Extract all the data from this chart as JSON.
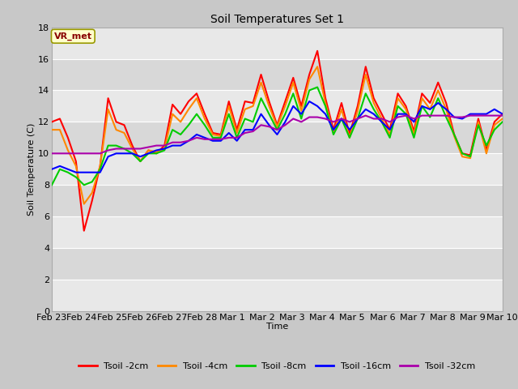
{
  "title": "Soil Temperatures Set 1",
  "xlabel": "Time",
  "ylabel": "Soil Temperature (C)",
  "ylim": [
    0,
    18
  ],
  "yticks": [
    0,
    2,
    4,
    6,
    8,
    10,
    12,
    14,
    16,
    18
  ],
  "annotation_text": "VR_met",
  "annotation_bbox_facecolor": "#ffffcc",
  "annotation_text_color": "#880000",
  "annotation_edge_color": "#999900",
  "fig_facecolor": "#c8c8c8",
  "plot_bg_color": "#e8e8e8",
  "band_colors": [
    "#e8e8e8",
    "#d8d8d8"
  ],
  "grid_color": "#ffffff",
  "series_colors": {
    "Tsoil -2cm": "#ff0000",
    "Tsoil -4cm": "#ff8800",
    "Tsoil -8cm": "#00cc00",
    "Tsoil -16cm": "#0000ff",
    "Tsoil -32cm": "#aa00aa"
  },
  "xtick_labels": [
    "Feb 23",
    "Feb 24",
    "Feb 25",
    "Feb 26",
    "Feb 27",
    "Feb 28",
    "Mar 1",
    "Mar 2",
    "Mar 3",
    "Mar 4",
    "Mar 5",
    "Mar 6",
    "Mar 7",
    "Mar 8",
    "Mar 9",
    "Mar 10"
  ],
  "t2cm": [
    12.0,
    12.2,
    11.0,
    9.5,
    5.1,
    7.0,
    9.2,
    13.5,
    12.0,
    11.8,
    10.5,
    9.5,
    10.2,
    10.0,
    10.5,
    13.1,
    12.5,
    13.3,
    13.8,
    12.5,
    11.3,
    11.2,
    13.3,
    11.5,
    13.3,
    13.2,
    15.0,
    13.3,
    11.8,
    13.3,
    14.8,
    13.0,
    15.0,
    16.5,
    13.5,
    11.5,
    13.2,
    11.2,
    13.0,
    15.5,
    13.5,
    12.5,
    11.5,
    13.8,
    13.0,
    11.4,
    13.8,
    13.2,
    14.5,
    13.2,
    11.2,
    10.0,
    9.9,
    12.2,
    10.2,
    12.0,
    12.5
  ],
  "t4cm": [
    11.5,
    11.5,
    10.2,
    9.2,
    6.8,
    7.5,
    9.2,
    12.8,
    11.5,
    11.3,
    10.3,
    9.5,
    10.2,
    10.1,
    10.3,
    12.5,
    12.0,
    12.8,
    13.5,
    12.2,
    11.2,
    11.1,
    13.0,
    11.3,
    12.8,
    13.0,
    14.5,
    13.0,
    11.7,
    13.0,
    14.5,
    12.7,
    14.7,
    15.5,
    13.2,
    11.3,
    12.8,
    11.0,
    12.7,
    15.0,
    13.2,
    12.2,
    11.2,
    13.5,
    12.8,
    11.2,
    13.5,
    12.8,
    14.0,
    12.8,
    11.1,
    9.8,
    9.7,
    12.0,
    10.0,
    11.8,
    12.2
  ],
  "t8cm": [
    8.0,
    9.0,
    8.8,
    8.5,
    8.0,
    8.2,
    9.0,
    10.5,
    10.5,
    10.3,
    10.0,
    9.5,
    10.0,
    10.0,
    10.2,
    11.5,
    11.2,
    11.8,
    12.5,
    11.8,
    11.0,
    11.0,
    12.5,
    11.0,
    12.2,
    12.0,
    13.5,
    12.5,
    11.5,
    12.5,
    13.8,
    12.2,
    14.0,
    14.2,
    13.0,
    11.2,
    12.2,
    11.0,
    12.2,
    13.8,
    12.8,
    12.0,
    11.0,
    13.0,
    12.5,
    11.0,
    13.0,
    12.3,
    13.5,
    12.3,
    11.2,
    10.0,
    9.8,
    11.8,
    10.5,
    11.5,
    12.0
  ],
  "t16cm": [
    9.0,
    9.2,
    9.0,
    8.8,
    8.8,
    8.8,
    8.8,
    9.8,
    10.0,
    10.0,
    10.0,
    9.8,
    10.0,
    10.2,
    10.3,
    10.5,
    10.5,
    10.8,
    11.2,
    11.0,
    10.8,
    10.8,
    11.3,
    10.8,
    11.5,
    11.5,
    12.5,
    11.8,
    11.2,
    12.0,
    13.0,
    12.5,
    13.3,
    13.0,
    12.5,
    11.5,
    12.2,
    11.5,
    12.2,
    12.8,
    12.5,
    12.0,
    11.5,
    12.5,
    12.5,
    12.0,
    13.0,
    12.8,
    13.2,
    12.8,
    12.3,
    12.2,
    12.5,
    12.5,
    12.5,
    12.8,
    12.5
  ],
  "t32cm": [
    10.0,
    10.0,
    10.0,
    10.0,
    10.0,
    10.0,
    10.0,
    10.2,
    10.3,
    10.3,
    10.3,
    10.3,
    10.4,
    10.5,
    10.5,
    10.7,
    10.7,
    10.8,
    11.0,
    10.9,
    10.9,
    10.9,
    11.0,
    11.0,
    11.3,
    11.4,
    11.8,
    11.7,
    11.5,
    11.8,
    12.2,
    12.0,
    12.3,
    12.3,
    12.2,
    12.0,
    12.2,
    12.0,
    12.2,
    12.4,
    12.2,
    12.2,
    12.0,
    12.3,
    12.4,
    12.2,
    12.4,
    12.4,
    12.4,
    12.4,
    12.3,
    12.3,
    12.4,
    12.4,
    12.4,
    12.4,
    12.4
  ]
}
